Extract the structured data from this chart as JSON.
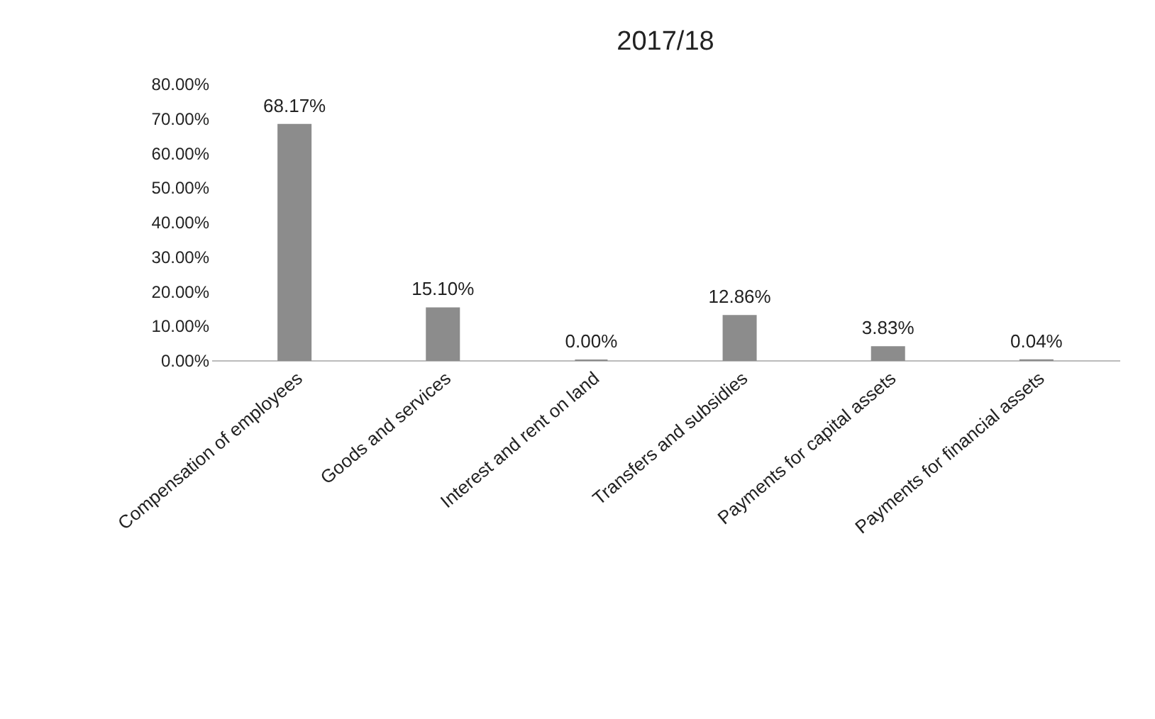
{
  "chart_data": {
    "type": "bar",
    "title": "2017/18",
    "categories": [
      "Compensation of employees",
      "Goods and services",
      "Interest and rent on land",
      "Transfers and subsidies",
      "Payments for capital assets",
      "Payments for financial assets"
    ],
    "values": [
      68.17,
      15.1,
      0.0,
      12.86,
      3.83,
      0.04
    ],
    "value_labels": [
      "68.17%",
      "15.10%",
      "0.00%",
      "12.86%",
      "3.83%",
      "0.04%"
    ],
    "color": "#8c8c8c",
    "ylim": [
      0,
      80
    ],
    "yticks": [
      {
        "value": 0,
        "label": "0.00%"
      },
      {
        "value": 10,
        "label": "10.00%"
      },
      {
        "value": 20,
        "label": "20.00%"
      },
      {
        "value": 30,
        "label": "30.00%"
      },
      {
        "value": 40,
        "label": "40.00%"
      },
      {
        "value": 50,
        "label": "50.00%"
      },
      {
        "value": 60,
        "label": "60.00%"
      },
      {
        "value": 70,
        "label": "70.00%"
      },
      {
        "value": 80,
        "label": "80.00%"
      }
    ],
    "grid": false
  }
}
